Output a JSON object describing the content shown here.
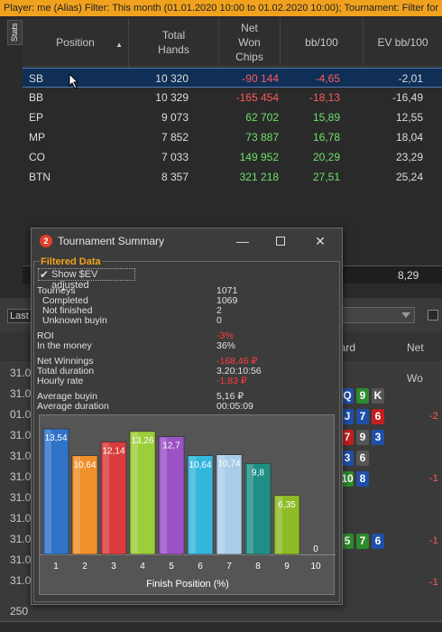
{
  "filter_bar": {
    "text": "Player: me (Alias)  Filter: This month (01.01.2020 10:00 to 01.02.2020 10:00); Tournament: Filter for"
  },
  "stats_tab": {
    "label": "Stats"
  },
  "stats_table": {
    "headers": {
      "position": "Position",
      "total_hands": "Total Hands",
      "net_won": "Net Won Chips",
      "bb100": "bb/100",
      "ev_bb100": "EV bb/100"
    },
    "rows": [
      {
        "position": "SB",
        "hands": "10 320",
        "won": "-90 144",
        "bb100": "-4,65",
        "evbb": "-2,01",
        "won_neg": true,
        "bb_neg": true
      },
      {
        "position": "BB",
        "hands": "10 329",
        "won": "-165 454",
        "bb100": "-18,13",
        "evbb": "-16,49",
        "won_neg": true,
        "bb_neg": true
      },
      {
        "position": "EP",
        "hands": "9 073",
        "won": "62 702",
        "bb100": "15,89",
        "evbb": "12,55",
        "won_neg": false,
        "bb_neg": false
      },
      {
        "position": "MP",
        "hands": "7 852",
        "won": "73 887",
        "bb100": "16,78",
        "evbb": "18,04",
        "won_neg": false,
        "bb_neg": false
      },
      {
        "position": "CO",
        "hands": "7 033",
        "won": "149 952",
        "bb100": "20,29",
        "evbb": "23,29",
        "won_neg": false,
        "bb_neg": false
      },
      {
        "position": "BTN",
        "hands": "8 357",
        "won": "321 218",
        "bb100": "27,51",
        "evbb": "25,24",
        "won_neg": false,
        "bb_neg": false
      }
    ],
    "summary_evbb": "8,29"
  },
  "panel2": {
    "last_label": "Last",
    "col_board": "oard",
    "col_netwon": "Net Wo",
    "dates": [
      "31.0",
      "31.0",
      "01.0",
      "31.0",
      "31.0",
      "31.0",
      "31.0",
      "31.0",
      "31.0",
      "31.0",
      "31.0"
    ],
    "neg_values": [
      "-2",
      "-1",
      "-1",
      "-1"
    ],
    "cards_rows": [
      [
        {
          "t": "Q",
          "c": "b"
        },
        {
          "t": "9",
          "c": "g"
        },
        {
          "t": "K",
          "c": "k"
        }
      ],
      [
        {
          "t": "J",
          "c": "b"
        },
        {
          "t": "7",
          "c": "b"
        },
        {
          "t": "6",
          "c": "r"
        }
      ],
      [
        {
          "t": "7",
          "c": "r"
        },
        {
          "t": "9",
          "c": "k"
        },
        {
          "t": "3",
          "c": "b"
        }
      ],
      [
        {
          "t": "3",
          "c": "b"
        },
        {
          "t": "6",
          "c": "k"
        }
      ],
      [
        {
          "t": "10",
          "c": "g"
        },
        {
          "t": "8",
          "c": "b"
        }
      ],
      [
        {
          "t": "5",
          "c": "g"
        },
        {
          "t": "7",
          "c": "g"
        },
        {
          "t": "6",
          "c": "b"
        }
      ]
    ],
    "footer_value": "250"
  },
  "tournament_summary": {
    "title": "Tournament Summary",
    "section_label": "Filtered Data",
    "show_ev_label": "Show $EV adjusted",
    "stats": [
      {
        "label": "Tourneys",
        "value": "1071",
        "red": false
      },
      {
        "label": "Completed",
        "value": "1069",
        "red": false
      },
      {
        "label": "Not finished",
        "value": "2",
        "red": false
      },
      {
        "label": "Unknown buyin",
        "value": "0",
        "red": false
      },
      {
        "label": "ROI",
        "value": "-3%",
        "red": true
      },
      {
        "label": "In the money",
        "value": "36%",
        "red": false
      },
      {
        "label": "Net Winnings",
        "value": "-168,46 ₽",
        "red": true
      },
      {
        "label": "Total duration",
        "value": "3.20:10:56",
        "red": false
      },
      {
        "label": "Hourly rate",
        "value": "-1,83 ₽",
        "red": true
      },
      {
        "label": "Average buyin",
        "value": "5,16 ₽",
        "red": false
      },
      {
        "label": "Average duration",
        "value": "00:05:09",
        "red": false
      }
    ]
  },
  "chart_data": {
    "type": "bar",
    "title": "",
    "xlabel": "Finish Position (%)",
    "ylabel": "",
    "categories": [
      "1",
      "2",
      "3",
      "4",
      "5",
      "6",
      "7",
      "8",
      "9",
      "10"
    ],
    "values": [
      13.54,
      10.64,
      12.14,
      13.26,
      12.7,
      10.64,
      10.74,
      9.8,
      6.35,
      0
    ],
    "labels": [
      "13,54",
      "10,64",
      "12,14",
      "13,26",
      "12,7",
      "10,64",
      "10,74",
      "9,8",
      "6,35",
      "0"
    ],
    "colors": [
      "#2f72c8",
      "#f0902a",
      "#d83c3c",
      "#9ccd3a",
      "#9a52c4",
      "#35b6dc",
      "#a9cde8",
      "#1f8f86",
      "#8dbb24",
      "#777777"
    ],
    "ylim": [
      0,
      15
    ],
    "grid": false,
    "legend": "none"
  }
}
